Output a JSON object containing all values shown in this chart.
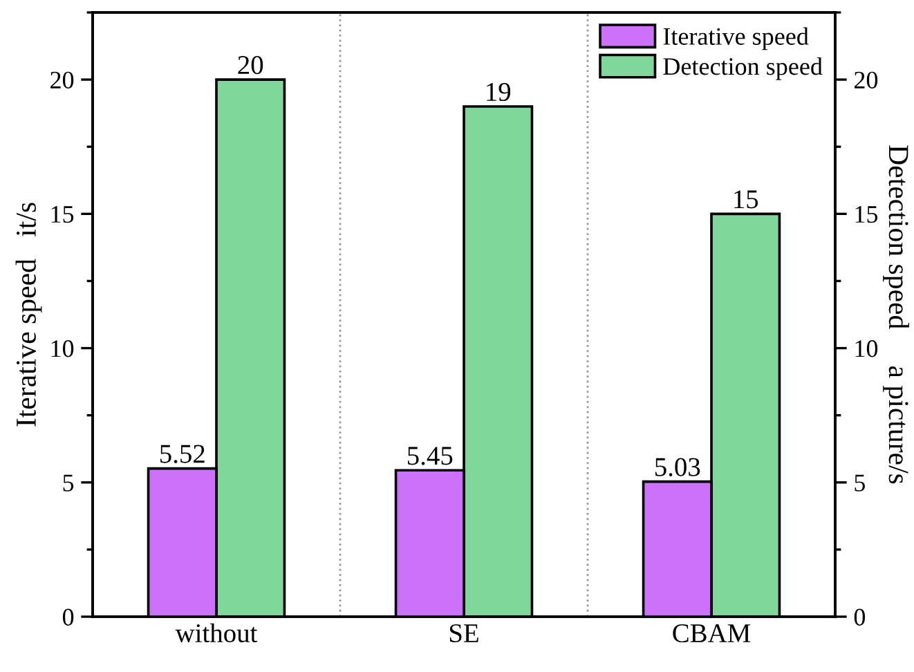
{
  "chart_data": {
    "type": "bar",
    "categories": [
      "without",
      "SE",
      "CBAM"
    ],
    "ylabel": "Iterative speed   it/s",
    "y2label": "Detection speed     a picture/s",
    "series": [
      {
        "name": "Iterative speed",
        "color": "#cc72fa",
        "values": [
          5.52,
          5.45,
          5.03
        ]
      },
      {
        "name": "Detection speed",
        "color": "#7fd899",
        "values": [
          20,
          19,
          15
        ],
        "axis": "y2"
      }
    ],
    "ylim": [
      0,
      22.5
    ],
    "yticks": [
      0,
      5,
      10,
      15,
      20
    ],
    "y2lim": [
      0,
      22.5
    ],
    "y2ticks": [
      0,
      5,
      10,
      15,
      20
    ],
    "data_labels": true,
    "legend": "top right",
    "grid": false
  }
}
